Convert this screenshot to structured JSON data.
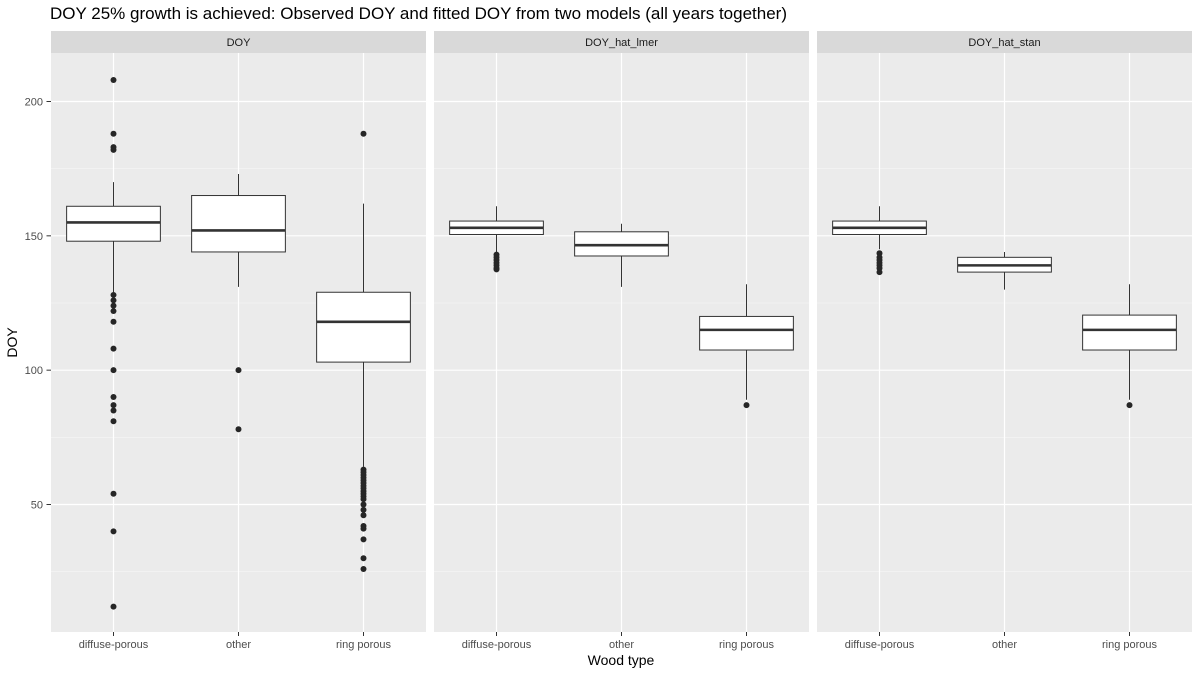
{
  "chart_data": {
    "type": "boxplot",
    "title": "DOY 25% growth is achieved: Observed DOY and fitted DOY from two models (all years together)",
    "xlabel": "Wood type",
    "ylabel": "DOY",
    "categories": [
      "diffuse-porous",
      "other",
      "ring porous"
    ],
    "ylim": [
      5,
      220
    ],
    "yticks": [
      50,
      100,
      150,
      200
    ],
    "grid": true,
    "facets": [
      {
        "name": "DOY",
        "boxes": [
          {
            "category": "diffuse-porous",
            "min": 129,
            "q1": 148,
            "median": 155,
            "q3": 161,
            "max": 170,
            "outliers": [
              208,
              188,
              183,
              182,
              128,
              126,
              124,
              122,
              118,
              108,
              100,
              90,
              87,
              85,
              81,
              54,
              40,
              12
            ]
          },
          {
            "category": "other",
            "min": 131,
            "q1": 144,
            "median": 152,
            "q3": 165,
            "max": 173,
            "outliers": [
              100,
              78
            ]
          },
          {
            "category": "ring porous",
            "min": 64,
            "q1": 103,
            "median": 118,
            "q3": 129,
            "max": 162,
            "outliers": [
              188,
              63,
              62,
              61,
              60,
              59,
              58,
              57,
              56,
              55,
              54,
              53,
              52,
              50,
              48,
              46,
              42,
              41,
              37,
              30,
              26
            ]
          }
        ]
      },
      {
        "name": "DOY_hat_lmer",
        "boxes": [
          {
            "category": "diffuse-porous",
            "min": 144,
            "q1": 150.5,
            "median": 153,
            "q3": 155.5,
            "max": 161,
            "outliers": [
              143,
              142,
              141,
              140,
              139,
              138,
              137.5
            ]
          },
          {
            "category": "other",
            "min": 131,
            "q1": 142.5,
            "median": 146.5,
            "q3": 151.5,
            "max": 154.5,
            "outliers": []
          },
          {
            "category": "ring porous",
            "min": 89,
            "q1": 107.5,
            "median": 115,
            "q3": 120,
            "max": 132,
            "outliers": [
              87
            ]
          }
        ]
      },
      {
        "name": "DOY_hat_stan",
        "boxes": [
          {
            "category": "diffuse-porous",
            "min": 145,
            "q1": 150.5,
            "median": 153,
            "q3": 155.5,
            "max": 161,
            "outliers": [
              143.5,
              142,
              141,
              140,
              139,
              138,
              136.5
            ]
          },
          {
            "category": "other",
            "min": 130,
            "q1": 136.5,
            "median": 139,
            "q3": 142,
            "max": 144,
            "outliers": []
          },
          {
            "category": "ring porous",
            "min": 89,
            "q1": 107.5,
            "median": 115,
            "q3": 120.5,
            "max": 132,
            "outliers": [
              87
            ]
          }
        ]
      }
    ]
  }
}
